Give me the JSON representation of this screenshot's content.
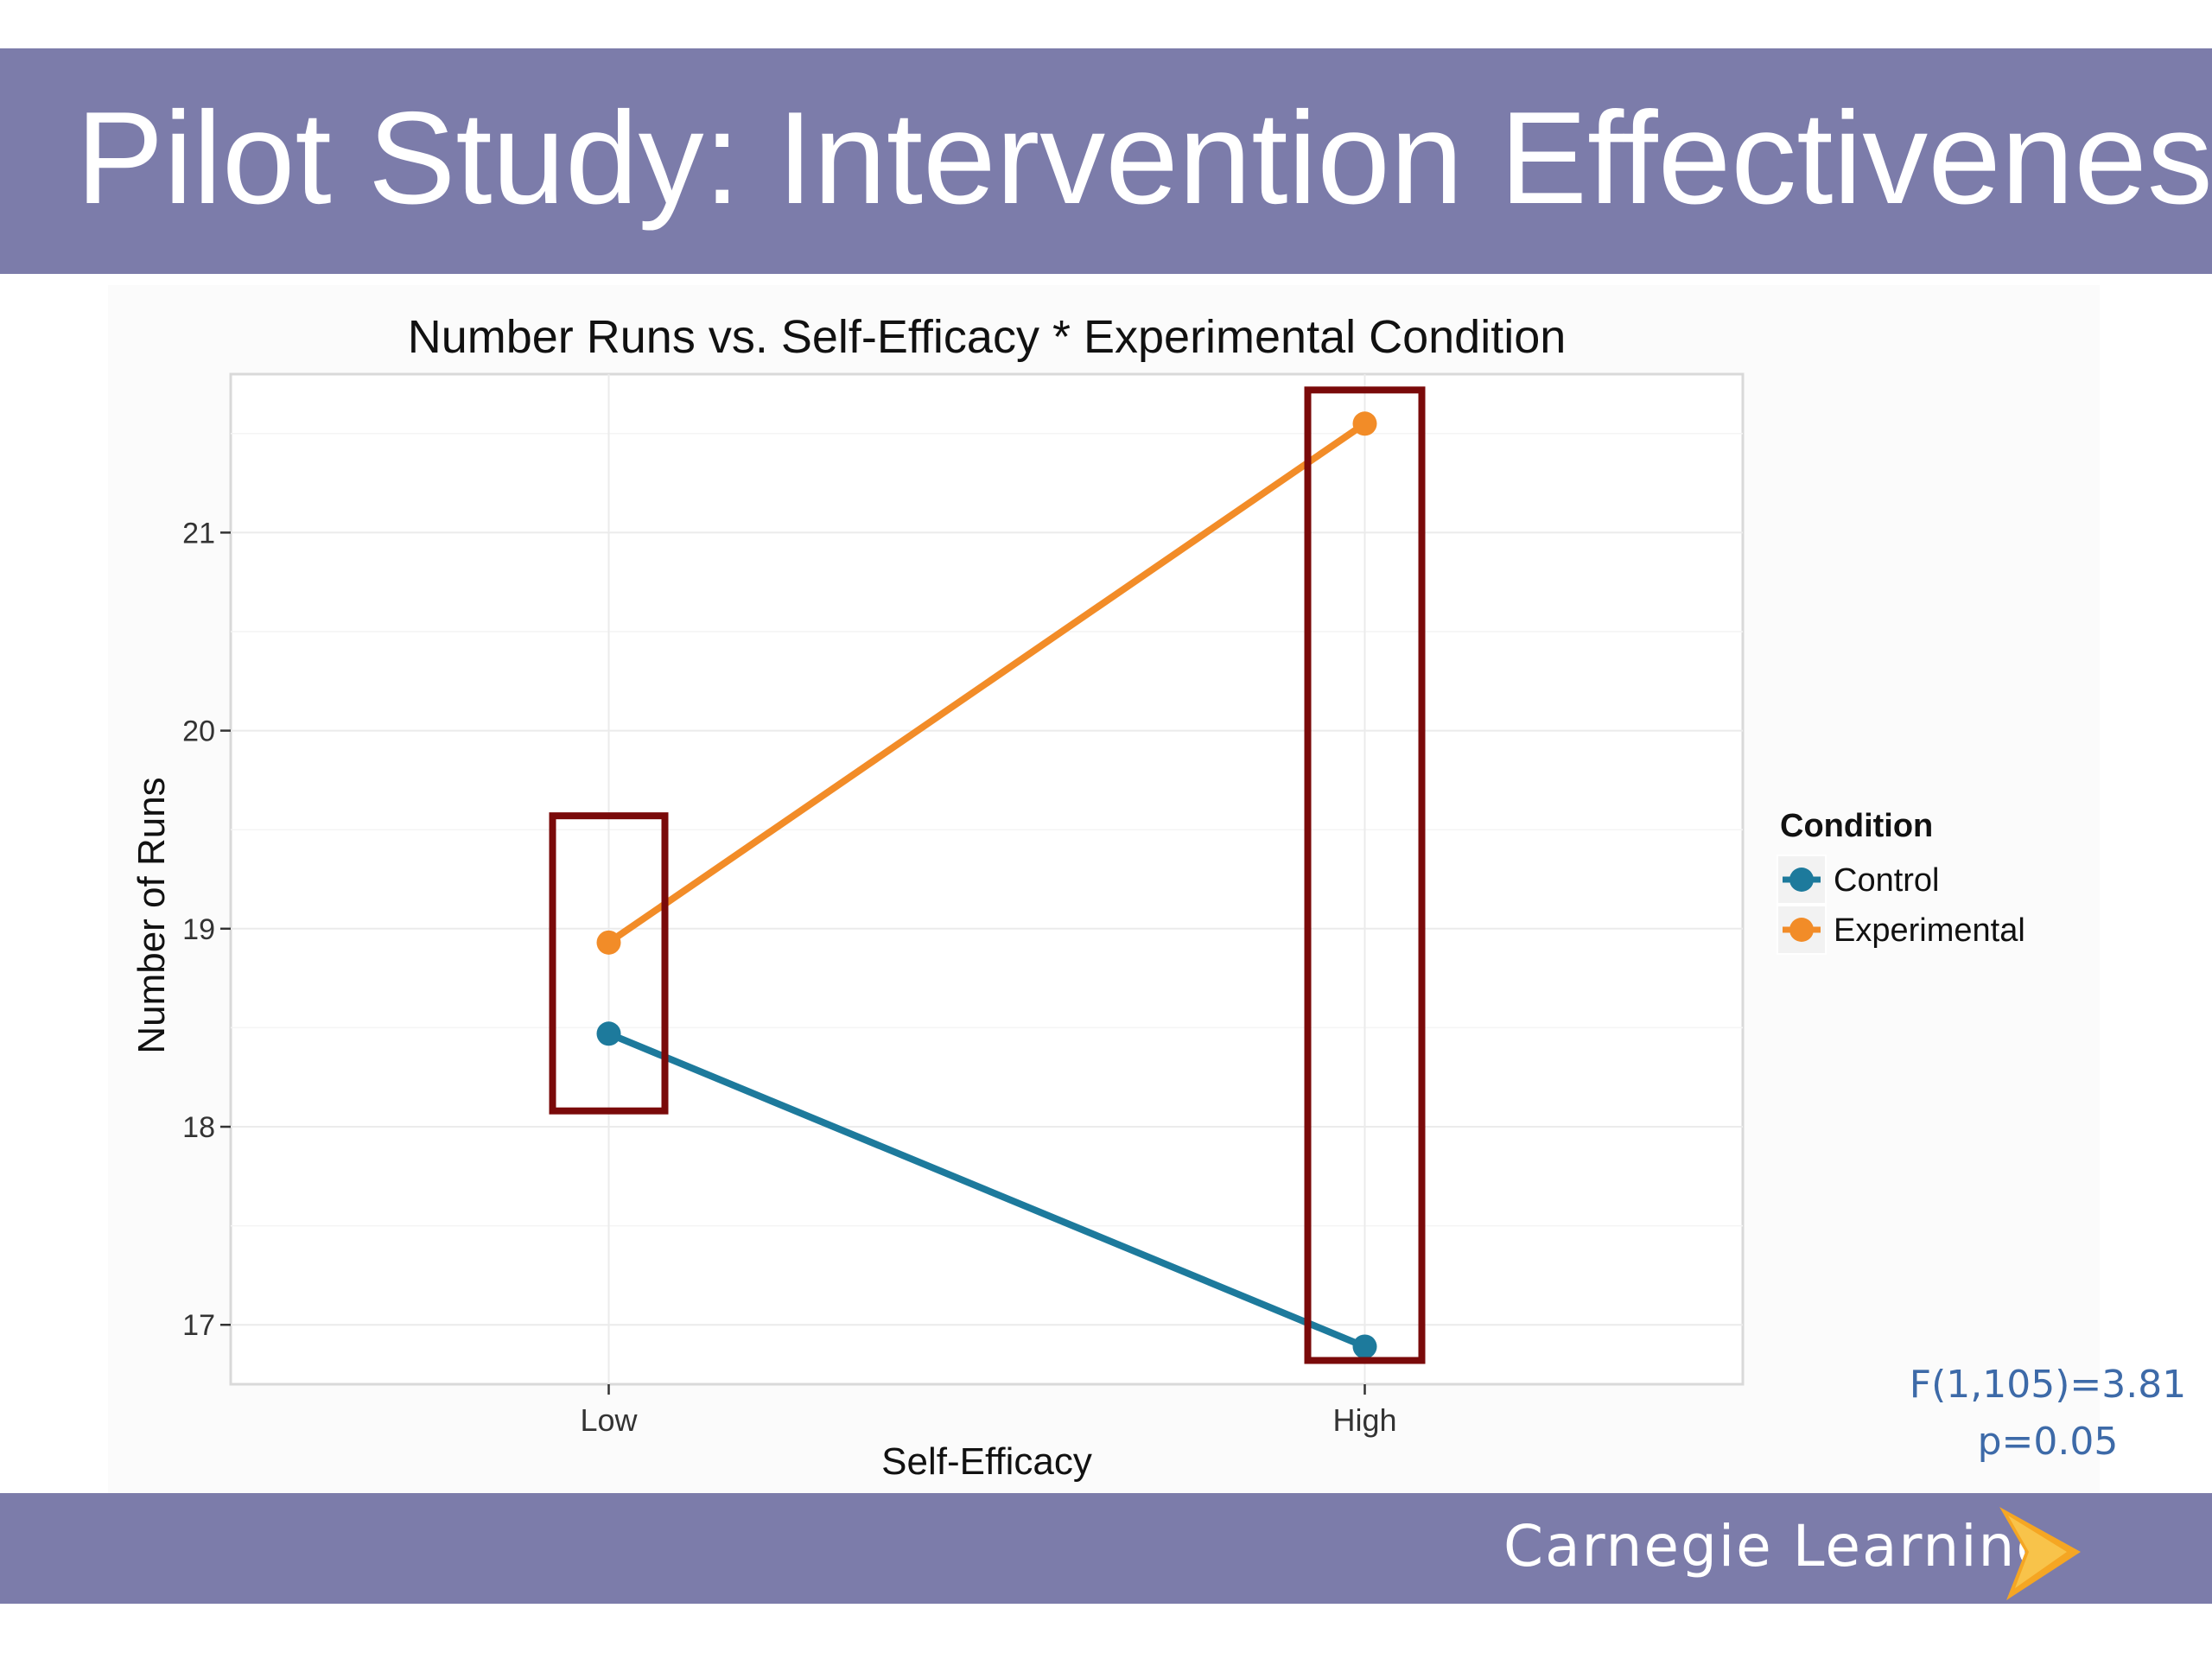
{
  "slide": {
    "title": "Pilot Study: Intervention Effectiveness",
    "header_color": "#7c7caa"
  },
  "chart_data": {
    "type": "line",
    "title": "Number Runs vs. Self-Efficacy * Experimental Condition",
    "xlabel": "Self-Efficacy",
    "ylabel": "Number of Runs",
    "categories": [
      "Low",
      "High"
    ],
    "y_ticks": [
      17,
      18,
      19,
      20,
      21
    ],
    "ylim": [
      16.7,
      21.8
    ],
    "grid": true,
    "legend": {
      "title": "Condition",
      "position": "right"
    },
    "series": [
      {
        "name": "Control",
        "color": "#1d7a9c",
        "values": [
          18.47,
          16.89
        ]
      },
      {
        "name": "Experimental",
        "color": "#f28c28",
        "values": [
          18.93,
          21.55
        ]
      }
    ],
    "highlight_boxes": [
      {
        "category": "Low",
        "ymin": 18.08,
        "ymax": 19.57
      },
      {
        "category": "High",
        "ymin": 16.82,
        "ymax": 21.72
      }
    ],
    "highlight_color": "#7a0a0a"
  },
  "stats": {
    "line1": "F(1,105)=3.81",
    "line2": "p=0.05"
  },
  "footer": {
    "brand": "Carnegie Learning",
    "logo_icon": "chevron-logo-icon"
  }
}
